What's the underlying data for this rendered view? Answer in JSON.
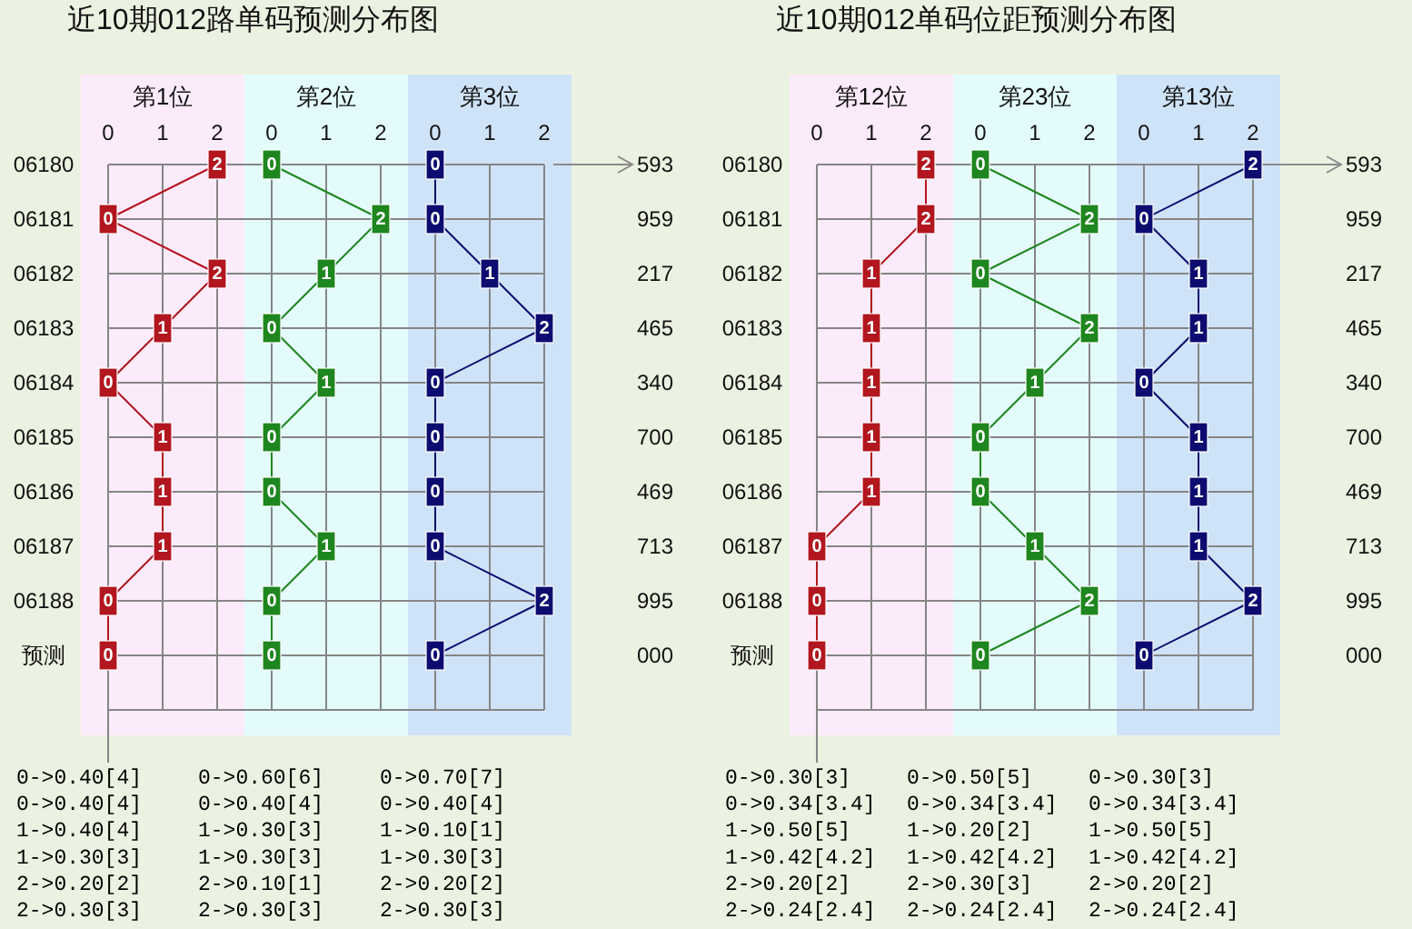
{
  "chart_data": [
    {
      "type": "line",
      "orientation": "horizontal",
      "title": "近10期012路单码预测分布图",
      "xlabel": "第1位",
      "categories": [
        "06180",
        "06181",
        "06182",
        "06183",
        "06184",
        "06185",
        "06186",
        "06187",
        "06188",
        "预测"
      ],
      "xlim": [
        -0.5,
        2.5
      ],
      "xticks": [
        0,
        1,
        2
      ],
      "grid": true,
      "marker": "square",
      "data_labels": true,
      "bands": [
        {
          "axis": "x",
          "from": -0.5,
          "to": 2.5,
          "color": "#fcebfa"
        }
      ],
      "series": [
        {
          "color": "#b2161e",
          "values": [
            2,
            0,
            2,
            1,
            0,
            1,
            1,
            1,
            0,
            0
          ]
        }
      ],
      "annotations": [
        "0->0.40[4]",
        "0->0.40[4]",
        "1->0.40[4]",
        "1->0.30[3]",
        "2->0.20[2]",
        "2->0.30[3]"
      ]
    },
    {
      "type": "line",
      "orientation": "horizontal",
      "xlabel": "第2位",
      "categories": [
        null,
        null,
        null,
        null,
        null,
        null,
        null,
        null,
        null,
        null
      ],
      "tick_labels": "x",
      "xlim": [
        -0.5,
        2.5
      ],
      "xticks": [
        0,
        1,
        2
      ],
      "grid": true,
      "marker": "square",
      "data_labels": true,
      "bands": [
        {
          "axis": "x",
          "from": -0.5,
          "to": 2.5,
          "color": "#e4fbfc"
        }
      ],
      "series": [
        {
          "color": "#1e861e",
          "values": [
            0,
            2,
            1,
            0,
            1,
            0,
            0,
            1,
            0,
            0
          ]
        }
      ],
      "annotations": [
        "0->0.60[6]",
        "0->0.40[4]",
        "1->0.30[3]",
        "1->0.30[3]",
        "2->0.10[1]",
        "2->0.30[3]"
      ]
    },
    {
      "type": "line",
      "orientation": "horizontal",
      "xlabel": "第3位",
      "categories": [
        null,
        null,
        null,
        null,
        null,
        null,
        null,
        null,
        null,
        null
      ],
      "y2_categories": [
        "593",
        "959",
        "217",
        "465",
        "340",
        "700",
        "469",
        "713",
        "995",
        "000"
      ],
      "tick_labels": "x",
      "xlim": [
        -0.5,
        2.5
      ],
      "xticks": [
        0,
        1,
        2
      ],
      "grid": true,
      "marker": "square",
      "data_labels": true,
      "bands": [
        {
          "axis": "x",
          "from": -0.5,
          "to": 2.5,
          "color": "#cfe3f8"
        }
      ],
      "series": [
        {
          "color": "#0c0c70",
          "values": [
            0,
            0,
            1,
            2,
            0,
            0,
            0,
            0,
            2,
            0
          ]
        }
      ],
      "annotations": [
        "0->0.70[7]",
        "0->0.40[4]",
        "1->0.10[1]",
        "1->0.30[3]",
        "2->0.20[2]",
        "2->0.30[3]"
      ]
    },
    {
      "type": "line",
      "orientation": "horizontal",
      "title": "近10期012单码位距预测分布图",
      "xlabel": "第12位",
      "categories": [
        "06180",
        "06181",
        "06182",
        "06183",
        "06184",
        "06185",
        "06186",
        "06187",
        "06188",
        "预测"
      ],
      "xlim": [
        -0.5,
        2.5
      ],
      "xticks": [
        0,
        1,
        2
      ],
      "grid": true,
      "marker": "square",
      "data_labels": true,
      "bands": [
        {
          "axis": "x",
          "from": -0.5,
          "to": 2.5,
          "color": "#fcebfa"
        }
      ],
      "series": [
        {
          "color": "#b2161e",
          "values": [
            2,
            2,
            1,
            1,
            1,
            1,
            1,
            0,
            0,
            0
          ]
        }
      ],
      "annotations": [
        "0->0.30[3]",
        "0->0.34[3.4]",
        "1->0.50[5]",
        "1->0.42[4.2]",
        "2->0.20[2]",
        "2->0.24[2.4]"
      ]
    },
    {
      "type": "line",
      "orientation": "horizontal",
      "xlabel": "第23位",
      "categories": [
        null,
        null,
        null,
        null,
        null,
        null,
        null,
        null,
        null,
        null
      ],
      "tick_labels": "x",
      "xlim": [
        -0.5,
        2.5
      ],
      "xticks": [
        0,
        1,
        2
      ],
      "grid": true,
      "marker": "square",
      "data_labels": true,
      "bands": [
        {
          "axis": "x",
          "from": -0.5,
          "to": 2.5,
          "color": "#e4fbfc"
        }
      ],
      "series": [
        {
          "color": "#1e861e",
          "values": [
            0,
            2,
            0,
            2,
            1,
            0,
            0,
            1,
            2,
            0
          ]
        }
      ],
      "annotations": [
        "0->0.50[5]",
        "0->0.34[3.4]",
        "1->0.20[2]",
        "1->0.42[4.2]",
        "2->0.30[3]",
        "2->0.24[2.4]"
      ]
    },
    {
      "type": "line",
      "orientation": "horizontal",
      "xlabel": "第13位",
      "categories": [
        null,
        null,
        null,
        null,
        null,
        null,
        null,
        null,
        null,
        null
      ],
      "y2_categories": [
        "593",
        "959",
        "217",
        "465",
        "340",
        "700",
        "469",
        "713",
        "995",
        "000"
      ],
      "tick_labels": "x",
      "xlim": [
        -0.5,
        2.5
      ],
      "xticks": [
        0,
        1,
        2
      ],
      "grid": true,
      "marker": "square",
      "data_labels": true,
      "bands": [
        {
          "axis": "x",
          "from": -0.5,
          "to": 2.5,
          "color": "#cfe3f8"
        }
      ],
      "series": [
        {
          "color": "#0c0c70",
          "values": [
            2,
            0,
            1,
            1,
            0,
            1,
            1,
            1,
            2,
            0
          ]
        }
      ],
      "annotations": [
        "0->0.30[3]",
        "0->0.34[3.4]",
        "1->0.50[5]",
        "1->0.42[4.2]",
        "2->0.20[2]",
        "2->0.24[2.4]"
      ]
    }
  ]
}
